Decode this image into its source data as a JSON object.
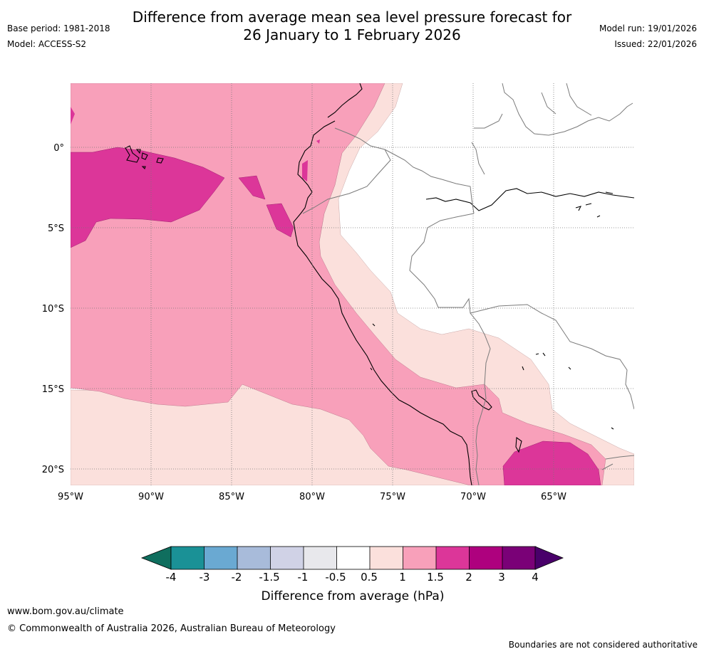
{
  "header": {
    "title_line1": "Difference from average mean sea level pressure forecast for",
    "title_line2": "26 January to 1 February 2026",
    "base_period": "Base period: 1981-2018",
    "model": "Model: ACCESS-S2",
    "model_run": "Model run: 19/01/2026",
    "issued": "Issued: 22/01/2026"
  },
  "map": {
    "lat_labels": [
      "0°",
      "5°S",
      "10°S",
      "15°S",
      "20°S"
    ],
    "lon_labels": [
      "95°W",
      "90°W",
      "85°W",
      "80°W",
      "75°W",
      "70°W",
      "65°W"
    ]
  },
  "colorbar": {
    "ticks": [
      "-4",
      "-3",
      "-2",
      "-1.5",
      "-1",
      "-0.5",
      "0.5",
      "1",
      "1.5",
      "2",
      "3",
      "4"
    ],
    "colors": [
      "#1a9196",
      "#6aa9d2",
      "#a8bbda",
      "#d0d2e6",
      "#e8e8ec",
      "#ffffff",
      "#fbe0dc",
      "#f8a0ba",
      "#dc3699",
      "#ae017e",
      "#7a0177"
    ],
    "left_extend_color": "#0f6e5e",
    "right_extend_color": "#49006a",
    "label": "Difference from average (hPa)"
  },
  "footer": {
    "url": "www.bom.gov.au/climate",
    "copyright": "© Commonwealth of Australia 2026, Australian Bureau of Meteorology",
    "disclaimer": "Boundaries are not considered authoritative"
  }
}
